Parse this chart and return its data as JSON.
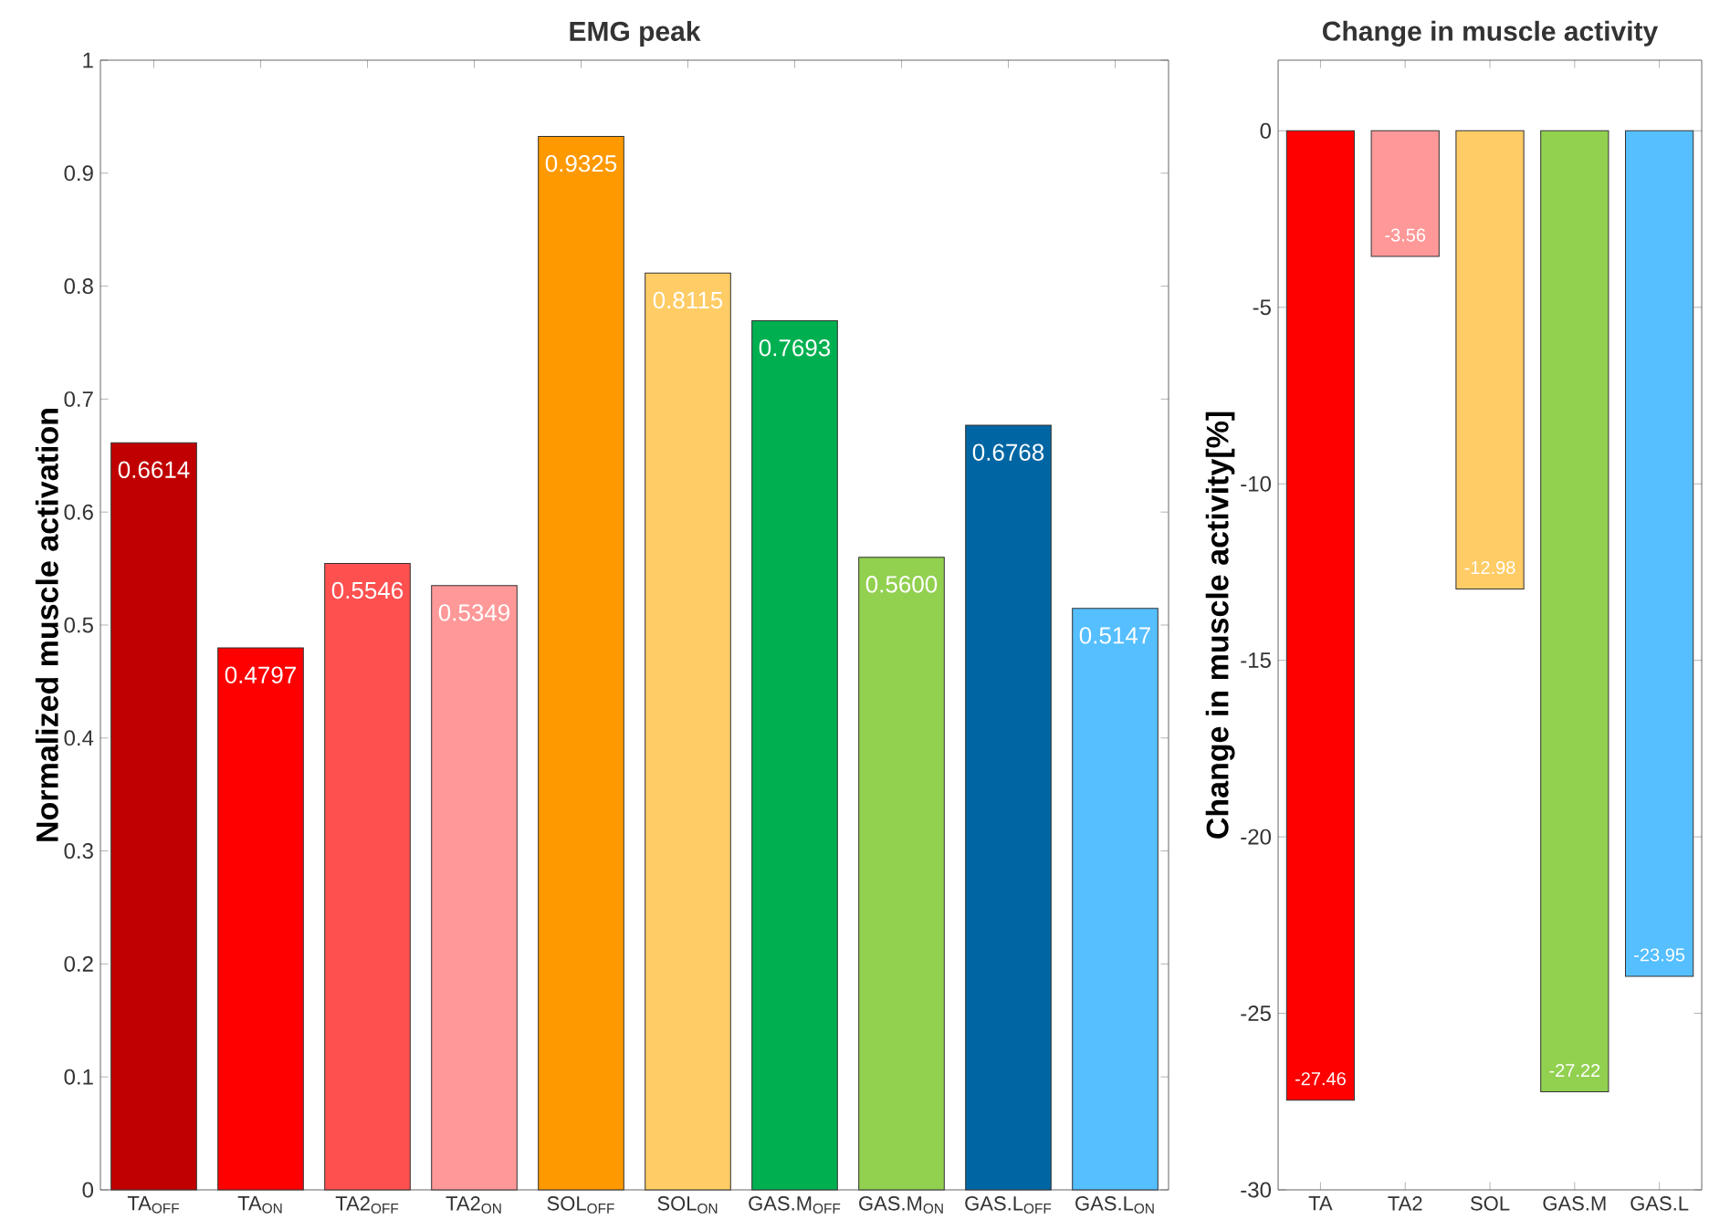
{
  "chart_data": [
    {
      "type": "bar",
      "title": "EMG peak",
      "ylabel": "Normalized muscle activation",
      "categories": [
        "TA$_{OFF}$",
        "TA$_{ON}$",
        "TA2$_{OFF}$",
        "TA2$_{ON}$",
        "SOL$_{OFF}$",
        "SOL$_{ON}$",
        "GAS.M$_{OFF}$",
        "GAS.M$_{ON}$",
        "GAS.L$_{OFF}$",
        "GAS.L$_{ON}$"
      ],
      "values": [
        0.6614,
        0.4797,
        0.5546,
        0.5349,
        0.9325,
        0.8115,
        0.7693,
        0.56,
        0.6768,
        0.5147
      ],
      "value_labels": [
        "0.6614",
        "0.4797",
        "0.5546",
        "0.5349",
        "0.9325",
        "0.8115",
        "0.7693",
        "0.5600",
        "0.6768",
        "0.5147"
      ],
      "colors": [
        "#c00000",
        "#ff0000",
        "#ff5050",
        "#ff9999",
        "#ff9900",
        "#ffcc66",
        "#00b050",
        "#92d050",
        "#0066a3",
        "#55bfff"
      ],
      "ylim": [
        0,
        1
      ],
      "yticks": [
        0,
        0.1,
        0.2,
        0.3,
        0.4,
        0.5,
        0.6,
        0.7,
        0.8,
        0.9,
        1
      ]
    },
    {
      "type": "bar",
      "title": "Change in muscle activity",
      "ylabel": "Change in muscle activity[%]",
      "categories": [
        "TA",
        "TA2",
        "SOL",
        "GAS.M",
        "GAS.L"
      ],
      "values": [
        -27.46,
        -3.56,
        -12.98,
        -27.22,
        -23.95
      ],
      "value_labels": [
        "-27.46",
        "-3.56",
        "-12.98",
        "-27.22",
        "-23.95"
      ],
      "colors": [
        "#ff0000",
        "#ff9999",
        "#ffcc66",
        "#92d050",
        "#55bfff"
      ],
      "ylim": [
        -30,
        2
      ],
      "yticks": [
        -30,
        -25,
        -20,
        -15,
        -10,
        -5,
        0
      ]
    }
  ]
}
